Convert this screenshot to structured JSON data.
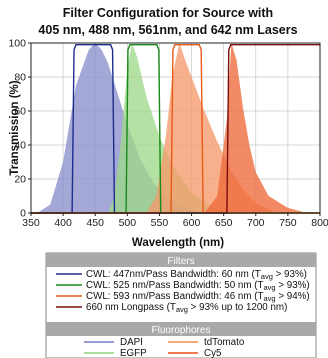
{
  "chart_data": {
    "type": "area",
    "title_line1": "Filter Configuration for Source with",
    "title_line2": "405 nm, 488 nm, 561nm, and 642 nm Lasers",
    "xlabel": "Wavelength (nm)",
    "ylabel": "Transmission (%)",
    "xlim": [
      350,
      800
    ],
    "ylim": [
      0,
      100
    ],
    "xticks": [
      350,
      400,
      450,
      500,
      550,
      600,
      650,
      700,
      750,
      800
    ],
    "yticks": [
      0,
      20,
      40,
      60,
      80,
      100
    ],
    "grid": true,
    "fluorophores": [
      {
        "name": "DAPI",
        "color": "#8b8fcc",
        "x": [
          360,
          380,
          400,
          420,
          440,
          450,
          460,
          470,
          480,
          500,
          520,
          540,
          560,
          580,
          600,
          620
        ],
        "y": [
          0,
          5,
          30,
          75,
          96,
          100,
          96,
          88,
          76,
          52,
          32,
          18,
          10,
          5,
          2,
          0
        ]
      },
      {
        "name": "EGFP",
        "color": "#9fd88a",
        "x": [
          470,
          480,
          490,
          500,
          507,
          515,
          530,
          550,
          570,
          600,
          630,
          660
        ],
        "y": [
          0,
          10,
          42,
          85,
          100,
          92,
          68,
          45,
          28,
          12,
          4,
          0
        ]
      },
      {
        "name": "tdTomato",
        "color": "#f59a6a",
        "x": [
          530,
          545,
          560,
          570,
          581,
          590,
          600,
          620,
          640,
          660,
          680,
          700,
          730
        ],
        "y": [
          0,
          10,
          45,
          80,
          100,
          90,
          80,
          60,
          42,
          26,
          14,
          6,
          0
        ]
      },
      {
        "name": "Cy5",
        "color": "#ee6a3a",
        "x": [
          620,
          640,
          655,
          662,
          670,
          680,
          690,
          700,
          720,
          750,
          780
        ],
        "y": [
          0,
          10,
          55,
          100,
          90,
          62,
          40,
          24,
          10,
          3,
          0
        ]
      }
    ],
    "filters": [
      {
        "label": "CWL: 447nm/Pass Bandwidth: 60 nm (T",
        "sub": "avg",
        "tail": " > 93%)",
        "color": "#1c2d8c",
        "x": [
          350,
          414,
          417,
          420,
          474,
          477,
          480,
          800
        ],
        "y": [
          0,
          0,
          96,
          99,
          99,
          96,
          0,
          0
        ]
      },
      {
        "label": "CWL: 525 nm/Pass Bandwidth: 50 nm (T",
        "sub": "avg",
        "tail": " > 93%)",
        "color": "#1a8a1a",
        "x": [
          350,
          498,
          501,
          504,
          546,
          549,
          552,
          800
        ],
        "y": [
          0,
          0,
          96,
          99,
          99,
          96,
          0,
          0
        ]
      },
      {
        "label": "CWL: 593 nm/Pass Bandwidth: 46 nm (T",
        "sub": "avg",
        "tail": " > 94%)",
        "color": "#e85a18",
        "x": [
          350,
          568,
          571,
          574,
          612,
          615,
          618,
          800
        ],
        "y": [
          0,
          0,
          96,
          99,
          99,
          96,
          0,
          0
        ]
      },
      {
        "label": "660 nm Longpass (T",
        "sub": "avg",
        "tail": " > 93% up to 1200 nm)",
        "color": "#7a0e0e",
        "x": [
          350,
          655,
          658,
          661,
          800
        ],
        "y": [
          0,
          0,
          96,
          99,
          99
        ]
      }
    ]
  },
  "legend": {
    "filters_header": "Filters",
    "fluorophores_header": "Fluorophores",
    "header_color": "#a9a9a9"
  }
}
